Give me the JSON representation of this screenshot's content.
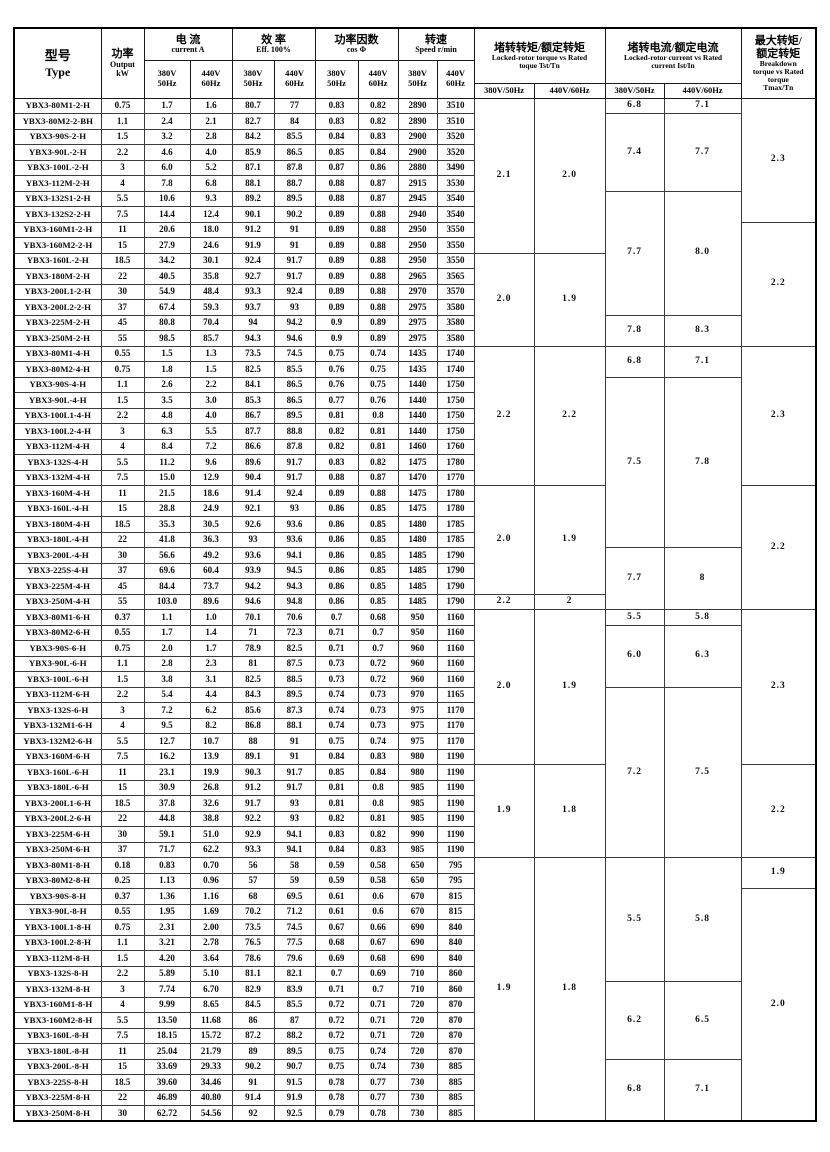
{
  "header": {
    "type": {
      "zh": "型号",
      "en": "Type"
    },
    "power": {
      "zh": "功率",
      "en1": "Output",
      "en2": "kW"
    },
    "current": {
      "zh": "电  流",
      "en": "current   A"
    },
    "eff": {
      "zh": "效  率",
      "en": "Eff. 100%"
    },
    "cos": {
      "zh": "功率因数",
      "en": "cos Φ"
    },
    "speed": {
      "zh": "转速",
      "en": "Speed r/min"
    },
    "tst": {
      "zh": "堵转转矩/额定转矩",
      "en1": "Locked-rotor torque vs Rated",
      "en2": "toque   Tst/Tn"
    },
    "ist": {
      "zh": "堵转电流/额定电流",
      "en1": "Locked-rotor current vs Rated",
      "en2": "current Ist/In"
    },
    "tmax": {
      "zh1": "最大转矩/",
      "zh2": "额定转矩",
      "en1": "Breakdown",
      "en2": "torque vs Rated",
      "en3": "torque",
      "en4": "Tmax/Tn"
    },
    "v50": "380V",
    "hz50": "50Hz",
    "v60": "440V",
    "hz60": "60Hz",
    "vhz50": "380V/50Hz",
    "vhz60": "440V/60Hz"
  },
  "sections": [
    {
      "rows": [
        [
          "YBX3-80M1-2-H",
          "0.75",
          "1.7",
          "1.6",
          "80.7",
          "77",
          "0.83",
          "0.82",
          "2890",
          "3510"
        ],
        [
          "YBX3-80M2-2-BH",
          "1.1",
          "2.4",
          "2.1",
          "82.7",
          "84",
          "0.83",
          "0.82",
          "2890",
          "3510"
        ],
        [
          "YBX3-90S-2-H",
          "1.5",
          "3.2",
          "2.8",
          "84.2",
          "85.5",
          "0.84",
          "0.83",
          "2900",
          "3520"
        ],
        [
          "YBX3-90L-2-H",
          "2.2",
          "4.6",
          "4.0",
          "85.9",
          "86.5",
          "0.85",
          "0.84",
          "2900",
          "3520"
        ],
        [
          "YBX3-100L-2-H",
          "3",
          "6.0",
          "5.2",
          "87.1",
          "87.8",
          "0.87",
          "0.86",
          "2880",
          "3490"
        ],
        [
          "YBX3-112M-2-H",
          "4",
          "7.8",
          "6.8",
          "88.1",
          "88.7",
          "0.88",
          "0.87",
          "2915",
          "3530"
        ],
        [
          "YBX3-132S1-2-H",
          "5.5",
          "10.6",
          "9.3",
          "89.2",
          "89.5",
          "0.88",
          "0.87",
          "2945",
          "3540"
        ],
        [
          "YBX3-132S2-2-H",
          "7.5",
          "14.4",
          "12.4",
          "90.1",
          "90.2",
          "0.89",
          "0.88",
          "2940",
          "3540"
        ],
        [
          "YBX3-160M1-2-H",
          "11",
          "20.6",
          "18.0",
          "91.2",
          "91",
          "0.89",
          "0.88",
          "2950",
          "3550"
        ],
        [
          "YBX3-160M2-2-H",
          "15",
          "27.9",
          "24.6",
          "91.9",
          "91",
          "0.89",
          "0.88",
          "2950",
          "3550"
        ],
        [
          "YBX3-160L-2-H",
          "18.5",
          "34.2",
          "30.1",
          "92.4",
          "91.7",
          "0.89",
          "0.88",
          "2950",
          "3550"
        ],
        [
          "YBX3-180M-2-H",
          "22",
          "40.5",
          "35.8",
          "92.7",
          "91.7",
          "0.89",
          "0.88",
          "2965",
          "3565"
        ],
        [
          "YBX3-200L1-2-H",
          "30",
          "54.9",
          "48.4",
          "93.3",
          "92.4",
          "0.89",
          "0.88",
          "2970",
          "3570"
        ],
        [
          "YBX3-200L2-2-H",
          "37",
          "67.4",
          "59.3",
          "93.7",
          "93",
          "0.89",
          "0.88",
          "2975",
          "3580"
        ],
        [
          "YBX3-225M-2-H",
          "45",
          "80.8",
          "70.4",
          "94",
          "94.2",
          "0.9",
          "0.89",
          "2975",
          "3580"
        ],
        [
          "YBX3-250M-2-H",
          "55",
          "98.5",
          "85.7",
          "94.3",
          "94.6",
          "0.9",
          "0.89",
          "2975",
          "3580"
        ]
      ],
      "merged": {
        "tst380": [
          [
            "2.1",
            10
          ],
          [
            "2.0",
            6
          ]
        ],
        "tst440": [
          [
            "2.0",
            10
          ],
          [
            "1.9",
            6
          ]
        ],
        "ist380": [
          [
            "6.8",
            1
          ],
          [
            "7.4",
            5
          ],
          [
            "7.7",
            8
          ],
          [
            "7.8",
            2
          ]
        ],
        "ist440": [
          [
            "7.1",
            1
          ],
          [
            "7.7",
            5
          ],
          [
            "8.0",
            8
          ],
          [
            "8.3",
            2
          ]
        ],
        "tmax": [
          [
            "2.3",
            8
          ],
          [
            "2.2",
            8
          ]
        ]
      }
    },
    {
      "rows": [
        [
          "YBX3-80M1-4-H",
          "0.55",
          "1.5",
          "1.3",
          "73.5",
          "74.5",
          "0.75",
          "0.74",
          "1435",
          "1740"
        ],
        [
          "YBX3-80M2-4-H",
          "0.75",
          "1.8",
          "1.5",
          "82.5",
          "85.5",
          "0.76",
          "0.75",
          "1435",
          "1740"
        ],
        [
          "YBX3-90S-4-H",
          "1.1",
          "2.6",
          "2.2",
          "84.1",
          "86.5",
          "0.76",
          "0.75",
          "1440",
          "1750"
        ],
        [
          "YBX3-90L-4-H",
          "1.5",
          "3.5",
          "3.0",
          "85.3",
          "86.5",
          "0.77",
          "0.76",
          "1440",
          "1750"
        ],
        [
          "YBX3-100L1-4-H",
          "2.2",
          "4.8",
          "4.0",
          "86.7",
          "89.5",
          "0.81",
          "0.8",
          "1440",
          "1750"
        ],
        [
          "YBX3-100L2-4-H",
          "3",
          "6.3",
          "5.5",
          "87.7",
          "88.8",
          "0.82",
          "0.81",
          "1440",
          "1750"
        ],
        [
          "YBX3-112M-4-H",
          "4",
          "8.4",
          "7.2",
          "86.6",
          "87.8",
          "0.82",
          "0.81",
          "1460",
          "1760"
        ],
        [
          "YBX3-132S-4-H",
          "5.5",
          "11.2",
          "9.6",
          "89.6",
          "91.7",
          "0.83",
          "0.82",
          "1475",
          "1780"
        ],
        [
          "YBX3-132M-4-H",
          "7.5",
          "15.0",
          "12.9",
          "90.4",
          "91.7",
          "0.88",
          "0.87",
          "1470",
          "1770"
        ],
        [
          "YBX3-160M-4-H",
          "11",
          "21.5",
          "18.6",
          "91.4",
          "92.4",
          "0.89",
          "0.88",
          "1475",
          "1780"
        ],
        [
          "YBX3-160L-4-H",
          "15",
          "28.8",
          "24.9",
          "92.1",
          "93",
          "0.86",
          "0.85",
          "1475",
          "1780"
        ],
        [
          "YBX3-180M-4-H",
          "18.5",
          "35.3",
          "30.5",
          "92.6",
          "93.6",
          "0.86",
          "0.85",
          "1480",
          "1785"
        ],
        [
          "YBX3-180L-4-H",
          "22",
          "41.8",
          "36.3",
          "93",
          "93.6",
          "0.86",
          "0.85",
          "1480",
          "1785"
        ],
        [
          "YBX3-200L-4-H",
          "30",
          "56.6",
          "49.2",
          "93.6",
          "94.1",
          "0.86",
          "0.85",
          "1485",
          "1790"
        ],
        [
          "YBX3-225S-4-H",
          "37",
          "69.6",
          "60.4",
          "93.9",
          "94.5",
          "0.86",
          "0.85",
          "1485",
          "1790"
        ],
        [
          "YBX3-225M-4-H",
          "45",
          "84.4",
          "73.7",
          "94.2",
          "94.3",
          "0.86",
          "0.85",
          "1485",
          "1790"
        ],
        [
          "YBX3-250M-4-H",
          "55",
          "103.0",
          "89.6",
          "94.6",
          "94.8",
          "0.86",
          "0.85",
          "1485",
          "1790"
        ]
      ],
      "merged": {
        "tst380": [
          [
            "2.2",
            9
          ],
          [
            "2.0",
            7
          ],
          [
            "2.2",
            1
          ]
        ],
        "tst440": [
          [
            "2.2",
            9
          ],
          [
            "1.9",
            7
          ],
          [
            "2",
            1
          ]
        ],
        "ist380": [
          [
            "6.8",
            2
          ],
          [
            "7.5",
            11
          ],
          [
            "7.7",
            4
          ]
        ],
        "ist440": [
          [
            "7.1",
            2
          ],
          [
            "7.8",
            11
          ],
          [
            "8",
            4
          ]
        ],
        "tmax": [
          [
            "2.3",
            9
          ],
          [
            "2.2",
            8
          ]
        ]
      }
    },
    {
      "rows": [
        [
          "YBX3-80M1-6-H",
          "0.37",
          "1.1",
          "1.0",
          "70.1",
          "70.6",
          "0.7",
          "0.68",
          "950",
          "1160"
        ],
        [
          "YBX3-80M2-6-H",
          "0.55",
          "1.7",
          "1.4",
          "71",
          "72.3",
          "0.71",
          "0.7",
          "950",
          "1160"
        ],
        [
          "YBX3-90S-6-H",
          "0.75",
          "2.0",
          "1.7",
          "78.9",
          "82.5",
          "0.71",
          "0.7",
          "960",
          "1160"
        ],
        [
          "YBX3-90L-6-H",
          "1.1",
          "2.8",
          "2.3",
          "81",
          "87.5",
          "0.73",
          "0.72",
          "960",
          "1160"
        ],
        [
          "YBX3-100L-6-H",
          "1.5",
          "3.8",
          "3.1",
          "82.5",
          "88.5",
          "0.73",
          "0.72",
          "960",
          "1160"
        ],
        [
          "YBX3-112M-6-H",
          "2.2",
          "5.4",
          "4.4",
          "84.3",
          "89.5",
          "0.74",
          "0.73",
          "970",
          "1165"
        ],
        [
          "YBX3-132S-6-H",
          "3",
          "7.2",
          "6.2",
          "85.6",
          "87.3",
          "0.74",
          "0.73",
          "975",
          "1170"
        ],
        [
          "YBX3-132M1-6-H",
          "4",
          "9.5",
          "8.2",
          "86.8",
          "88.1",
          "0.74",
          "0.73",
          "975",
          "1170"
        ],
        [
          "YBX3-132M2-6-H",
          "5.5",
          "12.7",
          "10.7",
          "88",
          "91",
          "0.75",
          "0.74",
          "975",
          "1170"
        ],
        [
          "YBX3-160M-6-H",
          "7.5",
          "16.2",
          "13.9",
          "89.1",
          "91",
          "0.84",
          "0.83",
          "980",
          "1190"
        ],
        [
          "YBX3-160L-6-H",
          "11",
          "23.1",
          "19.9",
          "90.3",
          "91.7",
          "0.85",
          "0.84",
          "980",
          "1190"
        ],
        [
          "YBX3-180L-6-H",
          "15",
          "30.9",
          "26.8",
          "91.2",
          "91.7",
          "0.81",
          "0.8",
          "985",
          "1190"
        ],
        [
          "YBX3-200L1-6-H",
          "18.5",
          "37.8",
          "32.6",
          "91.7",
          "93",
          "0.81",
          "0.8",
          "985",
          "1190"
        ],
        [
          "YBX3-200L2-6-H",
          "22",
          "44.8",
          "38.8",
          "92.2",
          "93",
          "0.82",
          "0.81",
          "985",
          "1190"
        ],
        [
          "YBX3-225M-6-H",
          "30",
          "59.1",
          "51.0",
          "92.9",
          "94.1",
          "0.83",
          "0.82",
          "990",
          "1190"
        ],
        [
          "YBX3-250M-6-H",
          "37",
          "71.7",
          "62.2",
          "93.3",
          "94.1",
          "0.84",
          "0.83",
          "985",
          "1190"
        ]
      ],
      "merged": {
        "tst380": [
          [
            "2.0",
            10
          ],
          [
            "1.9",
            6
          ]
        ],
        "tst440": [
          [
            "1.9",
            10
          ],
          [
            "1.8",
            6
          ]
        ],
        "ist380": [
          [
            "5.5",
            1
          ],
          [
            "6.0",
            4
          ],
          [
            "7.2",
            11
          ]
        ],
        "ist440": [
          [
            "5.8",
            1
          ],
          [
            "6.3",
            4
          ],
          [
            "7.5",
            11
          ]
        ],
        "tmax": [
          [
            "2.3",
            10
          ],
          [
            "2.2",
            6
          ]
        ]
      }
    },
    {
      "rows": [
        [
          "YBX3-80M1-8-H",
          "0.18",
          "0.83",
          "0.70",
          "56",
          "58",
          "0.59",
          "0.58",
          "650",
          "795"
        ],
        [
          "YBX3-80M2-8-H",
          "0.25",
          "1.13",
          "0.96",
          "57",
          "59",
          "0.59",
          "0.58",
          "650",
          "795"
        ],
        [
          "YBX3-90S-8-H",
          "0.37",
          "1.36",
          "1.16",
          "68",
          "69.5",
          "0.61",
          "0.6",
          "670",
          "815"
        ],
        [
          "YBX3-90L-8-H",
          "0.55",
          "1.95",
          "1.69",
          "70.2",
          "71.2",
          "0.61",
          "0.6",
          "670",
          "815"
        ],
        [
          "YBX3-100L1-8-H",
          "0.75",
          "2.31",
          "2.00",
          "73.5",
          "74.5",
          "0.67",
          "0.66",
          "690",
          "840"
        ],
        [
          "YBX3-100L2-8-H",
          "1.1",
          "3.21",
          "2.78",
          "76.5",
          "77.5",
          "0.68",
          "0.67",
          "690",
          "840"
        ],
        [
          "YBX3-112M-8-H",
          "1.5",
          "4.20",
          "3.64",
          "78.6",
          "79.6",
          "0.69",
          "0.68",
          "690",
          "840"
        ],
        [
          "YBX3-132S-8-H",
          "2.2",
          "5.89",
          "5.10",
          "81.1",
          "82.1",
          "0.7",
          "0.69",
          "710",
          "860"
        ],
        [
          "YBX3-132M-8-H",
          "3",
          "7.74",
          "6.70",
          "82.9",
          "83.9",
          "0.71",
          "0.7",
          "710",
          "860"
        ],
        [
          "YBX3-160M1-8-H",
          "4",
          "9.99",
          "8.65",
          "84.5",
          "85.5",
          "0.72",
          "0.71",
          "720",
          "870"
        ],
        [
          "YBX3-160M2-8-H",
          "5.5",
          "13.50",
          "11.68",
          "86",
          "87",
          "0.72",
          "0.71",
          "720",
          "870"
        ],
        [
          "YBX3-160L-8-H",
          "7.5",
          "18.15",
          "15.72",
          "87.2",
          "88.2",
          "0.72",
          "0.71",
          "720",
          "870"
        ],
        [
          "YBX3-180L-8-H",
          "11",
          "25.04",
          "21.79",
          "89",
          "89.5",
          "0.75",
          "0.74",
          "720",
          "870"
        ],
        [
          "YBX3-200L-8-H",
          "15",
          "33.69",
          "29.33",
          "90.2",
          "90.7",
          "0.75",
          "0.74",
          "730",
          "885"
        ],
        [
          "YBX3-225S-8-H",
          "18.5",
          "39.60",
          "34.46",
          "91",
          "91.5",
          "0.78",
          "0.77",
          "730",
          "885"
        ],
        [
          "YBX3-225M-8-H",
          "22",
          "46.89",
          "40.80",
          "91.4",
          "91.9",
          "0.78",
          "0.77",
          "730",
          "885"
        ],
        [
          "YBX3-250M-8-H",
          "30",
          "62.72",
          "54.56",
          "92",
          "92.5",
          "0.79",
          "0.78",
          "730",
          "885"
        ]
      ],
      "merged": {
        "tst380": [
          [
            "1.9",
            17
          ]
        ],
        "tst440": [
          [
            "1.8",
            17
          ]
        ],
        "ist380": [
          [
            "5.5",
            8
          ],
          [
            "6.2",
            5
          ],
          [
            "6.8",
            4
          ]
        ],
        "ist440": [
          [
            "5.8",
            8
          ],
          [
            "6.5",
            5
          ],
          [
            "7.1",
            4
          ]
        ],
        "tmax": [
          [
            "1.9",
            2
          ],
          [
            "2.0",
            15
          ]
        ]
      }
    }
  ]
}
